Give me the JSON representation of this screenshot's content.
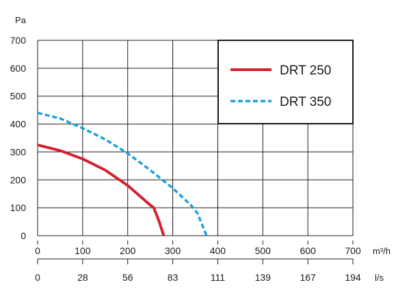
{
  "chart_data": {
    "type": "line",
    "ylabel": "Pa",
    "ylim": [
      0,
      700
    ],
    "yticks": [
      "0",
      "100",
      "200",
      "300",
      "400",
      "500",
      "600",
      "700"
    ],
    "x_primary": {
      "unit": "m³/h",
      "xlim": [
        0,
        700
      ],
      "ticks": [
        "0",
        "100",
        "200",
        "300",
        "400",
        "500",
        "600",
        "700"
      ]
    },
    "x_secondary": {
      "unit": "l/s",
      "ticks": [
        "0",
        "28",
        "56",
        "83",
        "111",
        "139",
        "167",
        "194"
      ]
    },
    "grid": true,
    "legend_position": "top-right",
    "series": [
      {
        "name": "DRT 250",
        "color": "#d4202e",
        "style": "solid",
        "points": [
          [
            0,
            325
          ],
          [
            50,
            305
          ],
          [
            100,
            275
          ],
          [
            150,
            235
          ],
          [
            200,
            180
          ],
          [
            250,
            110
          ],
          [
            258,
            100
          ],
          [
            270,
            50
          ],
          [
            280,
            0
          ]
        ]
      },
      {
        "name": "DRT 350",
        "color": "#1aa1dc",
        "style": "dashed",
        "points": [
          [
            0,
            440
          ],
          [
            50,
            420
          ],
          [
            100,
            385
          ],
          [
            150,
            345
          ],
          [
            200,
            295
          ],
          [
            250,
            235
          ],
          [
            300,
            170
          ],
          [
            340,
            110
          ],
          [
            355,
            80
          ],
          [
            365,
            40
          ],
          [
            375,
            0
          ]
        ]
      }
    ]
  }
}
